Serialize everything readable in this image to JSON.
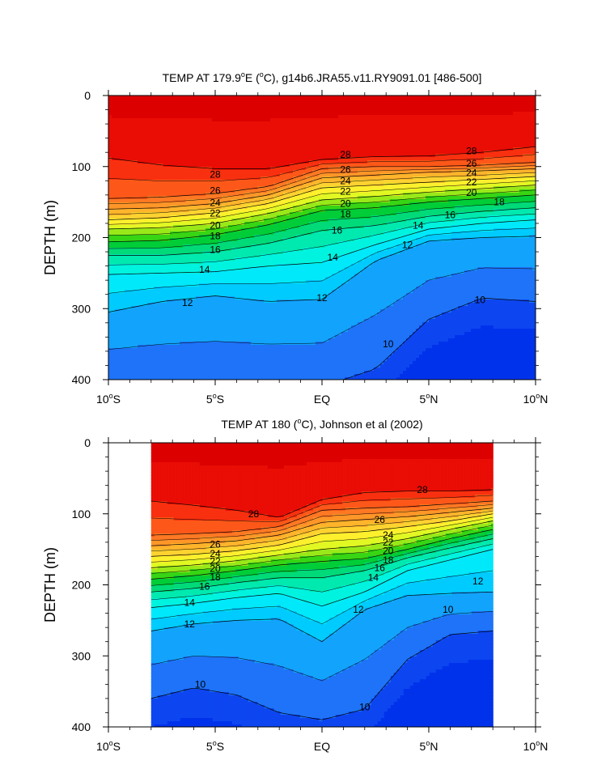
{
  "chart_data": [
    {
      "type": "contour",
      "title": "TEMP AT 179.9°E (°C), g14b6.JRA55.v11.RY9091.01 [486-500]",
      "title_parts": {
        "pre": "TEMP AT 179.9",
        "sup1": "o",
        "mid": "E (",
        "sup2": "o",
        "post": "C), g14b6.JRA55.v11.RY9091.01 [486-500]"
      },
      "ylabel": "DEPTH (m)",
      "xlabel": "",
      "x_ticks": [
        {
          "value": -10,
          "label": "10°S",
          "num": "10",
          "hem": "S"
        },
        {
          "value": -5,
          "label": "5°S",
          "num": "5",
          "hem": "S"
        },
        {
          "value": 0,
          "label": "EQ",
          "num": "EQ",
          "hem": ""
        },
        {
          "value": 5,
          "label": "5°N",
          "num": "5",
          "hem": "N"
        },
        {
          "value": 10,
          "label": "10°N",
          "num": "10",
          "hem": "N"
        }
      ],
      "y_ticks": [
        0,
        100,
        200,
        300,
        400
      ],
      "xlim": [
        -10,
        10
      ],
      "ylim": [
        400,
        0
      ],
      "data_extent_x": [
        -10,
        10
      ],
      "contour_interval": 1,
      "contour_levels_range": [
        9,
        29
      ],
      "color_scale": "blue-to-red",
      "isotherm_depths": {
        "lat": [
          -10,
          -7.5,
          -5,
          -2.5,
          0,
          2.5,
          5,
          7.5,
          10
        ],
        "levels": [
          {
            "temp": 28,
            "depths": [
              88,
              98,
              103,
              103,
              90,
              86,
              85,
              80,
              72
            ]
          },
          {
            "temp": 26,
            "depths": [
              145,
              143,
              138,
              128,
              103,
              100,
              100,
              98,
              94
            ]
          },
          {
            "temp": 24,
            "depths": [
              160,
              158,
              152,
              140,
              116,
              112,
              108,
              106,
              103
            ]
          },
          {
            "temp": 22,
            "depths": [
              175,
              172,
              165,
              152,
              130,
              126,
              122,
              118,
              114
            ]
          },
          {
            "temp": 20,
            "depths": [
              188,
              186,
              180,
              166,
              147,
              142,
              136,
              131,
              126
            ]
          },
          {
            "temp": 18,
            "depths": [
              206,
              204,
              196,
              182,
              162,
              158,
              150,
              145,
              140
            ]
          },
          {
            "temp": 16,
            "depths": [
              225,
              225,
              220,
              208,
              190,
              183,
              170,
              163,
              158
            ]
          },
          {
            "temp": 14,
            "depths": [
              252,
              250,
              248,
              240,
              235,
              210,
              188,
              180,
              175
            ]
          },
          {
            "temp": 12,
            "depths": [
              305,
              290,
              282,
              290,
              287,
              233,
              205,
              200,
              198
            ]
          },
          {
            "temp": 10,
            "depths": [
              410,
              410,
              410,
              410,
              410,
              385,
              315,
              285,
              290
            ]
          }
        ]
      },
      "contour_labels": [
        {
          "lat": -5,
          "depth": 111,
          "text": "28"
        },
        {
          "lat": 1.1,
          "depth": 83,
          "text": "28"
        },
        {
          "lat": 7,
          "depth": 78,
          "text": "28"
        },
        {
          "lat": -5,
          "depth": 134,
          "text": "26"
        },
        {
          "lat": 1.1,
          "depth": 104,
          "text": "26"
        },
        {
          "lat": 7,
          "depth": 96,
          "text": "26"
        },
        {
          "lat": -5,
          "depth": 151,
          "text": "24"
        },
        {
          "lat": 1.1,
          "depth": 120,
          "text": "24"
        },
        {
          "lat": 7,
          "depth": 109,
          "text": "24"
        },
        {
          "lat": -5,
          "depth": 166,
          "text": "22"
        },
        {
          "lat": 1.1,
          "depth": 135,
          "text": "22"
        },
        {
          "lat": 7,
          "depth": 122,
          "text": "22"
        },
        {
          "lat": -5,
          "depth": 183,
          "text": "20"
        },
        {
          "lat": 1.1,
          "depth": 152,
          "text": "20"
        },
        {
          "lat": 7,
          "depth": 137,
          "text": "20"
        },
        {
          "lat": -5,
          "depth": 198,
          "text": "18"
        },
        {
          "lat": 1.1,
          "depth": 167,
          "text": "18"
        },
        {
          "lat": 8.3,
          "depth": 150,
          "text": "18"
        },
        {
          "lat": -5,
          "depth": 217,
          "text": "16"
        },
        {
          "lat": 0.7,
          "depth": 190,
          "text": "16"
        },
        {
          "lat": 6,
          "depth": 168,
          "text": "16"
        },
        {
          "lat": -5.5,
          "depth": 245,
          "text": "14"
        },
        {
          "lat": 0.5,
          "depth": 228,
          "text": "14"
        },
        {
          "lat": 4.5,
          "depth": 183,
          "text": "14"
        },
        {
          "lat": -6.3,
          "depth": 292,
          "text": "12"
        },
        {
          "lat": 0,
          "depth": 285,
          "text": "12"
        },
        {
          "lat": 4,
          "depth": 210,
          "text": "12"
        },
        {
          "lat": 3.1,
          "depth": 350,
          "text": "10"
        },
        {
          "lat": 7.4,
          "depth": 288,
          "text": "10"
        }
      ]
    },
    {
      "type": "contour",
      "title": "TEMP AT 180 (°C), Johnson et al (2002)",
      "title_parts": {
        "pre": "TEMP AT 180 (",
        "sup1": "o",
        "post": "C), Johnson et al (2002)"
      },
      "ylabel": "DEPTH (m)",
      "xlabel": "",
      "x_ticks": [
        {
          "value": -10,
          "label": "10°S",
          "num": "10",
          "hem": "S"
        },
        {
          "value": -5,
          "label": "5°S",
          "num": "5",
          "hem": "S"
        },
        {
          "value": 0,
          "label": "EQ",
          "num": "EQ",
          "hem": ""
        },
        {
          "value": 5,
          "label": "5°N",
          "num": "5",
          "hem": "N"
        },
        {
          "value": 10,
          "label": "10°N",
          "num": "10",
          "hem": "N"
        }
      ],
      "y_ticks": [
        0,
        100,
        200,
        300,
        400
      ],
      "xlim": [
        -10,
        10
      ],
      "ylim": [
        400,
        0
      ],
      "data_extent_x": [
        -8,
        8
      ],
      "contour_interval": 1,
      "contour_levels_range": [
        9,
        29
      ],
      "color_scale": "blue-to-red",
      "isotherm_depths": {
        "lat": [
          -8,
          -6,
          -4,
          -2,
          0,
          2,
          4,
          6,
          8
        ],
        "levels": [
          {
            "temp": 28,
            "depths": [
              82,
              88,
              95,
              105,
              80,
              70,
              68,
              68,
              66
            ]
          },
          {
            "temp": 26,
            "depths": [
              130,
              128,
              125,
              118,
              95,
              92,
              90,
              86,
              82
            ]
          },
          {
            "temp": 24,
            "depths": [
              145,
              142,
              138,
              130,
              112,
              108,
              104,
              98,
              92
            ]
          },
          {
            "temp": 22,
            "depths": [
              160,
              157,
              152,
              144,
              128,
              125,
              118,
              110,
              100
            ]
          },
          {
            "temp": 20,
            "depths": [
              176,
              172,
              166,
              158,
              150,
              145,
              135,
              122,
              110
            ]
          },
          {
            "temp": 18,
            "depths": [
              192,
              187,
              180,
              172,
              167,
              163,
              150,
              135,
              122
            ]
          },
          {
            "temp": 16,
            "depths": [
              210,
              205,
              197,
              190,
              190,
              180,
              162,
              148,
              135
            ]
          },
          {
            "temp": 14,
            "depths": [
              232,
              226,
              218,
              212,
              230,
              210,
              180,
              165,
              150
            ]
          },
          {
            "temp": 12,
            "depths": [
              265,
              255,
              250,
              248,
              280,
              235,
              215,
              212,
              210
            ]
          },
          {
            "temp": 10,
            "depths": [
              360,
              345,
              355,
              380,
              390,
              375,
              305,
              270,
              265
            ]
          }
        ]
      },
      "contour_labels": [
        {
          "lat": 4.7,
          "depth": 66,
          "text": "28"
        },
        {
          "lat": -3.2,
          "depth": 100,
          "text": "28"
        },
        {
          "lat": 2.7,
          "depth": 108,
          "text": "26"
        },
        {
          "lat": -5,
          "depth": 143,
          "text": "26"
        },
        {
          "lat": 3.1,
          "depth": 130,
          "text": "24"
        },
        {
          "lat": -5,
          "depth": 156,
          "text": "24"
        },
        {
          "lat": 3.1,
          "depth": 140,
          "text": "22"
        },
        {
          "lat": -5,
          "depth": 167,
          "text": "22"
        },
        {
          "lat": 3.1,
          "depth": 152,
          "text": "20"
        },
        {
          "lat": -5,
          "depth": 177,
          "text": "20"
        },
        {
          "lat": 3.1,
          "depth": 165,
          "text": "18"
        },
        {
          "lat": -5,
          "depth": 189,
          "text": "18"
        },
        {
          "lat": 2.7,
          "depth": 176,
          "text": "16"
        },
        {
          "lat": -5.5,
          "depth": 202,
          "text": "16"
        },
        {
          "lat": 2.4,
          "depth": 190,
          "text": "14"
        },
        {
          "lat": -6.2,
          "depth": 225,
          "text": "14"
        },
        {
          "lat": 1.7,
          "depth": 235,
          "text": "12"
        },
        {
          "lat": -6.2,
          "depth": 255,
          "text": "12"
        },
        {
          "lat": 7.3,
          "depth": 195,
          "text": "12"
        },
        {
          "lat": 5.9,
          "depth": 235,
          "text": "10"
        },
        {
          "lat": -5.7,
          "depth": 340,
          "text": "10"
        },
        {
          "lat": 2,
          "depth": 372,
          "text": "10"
        }
      ]
    }
  ]
}
